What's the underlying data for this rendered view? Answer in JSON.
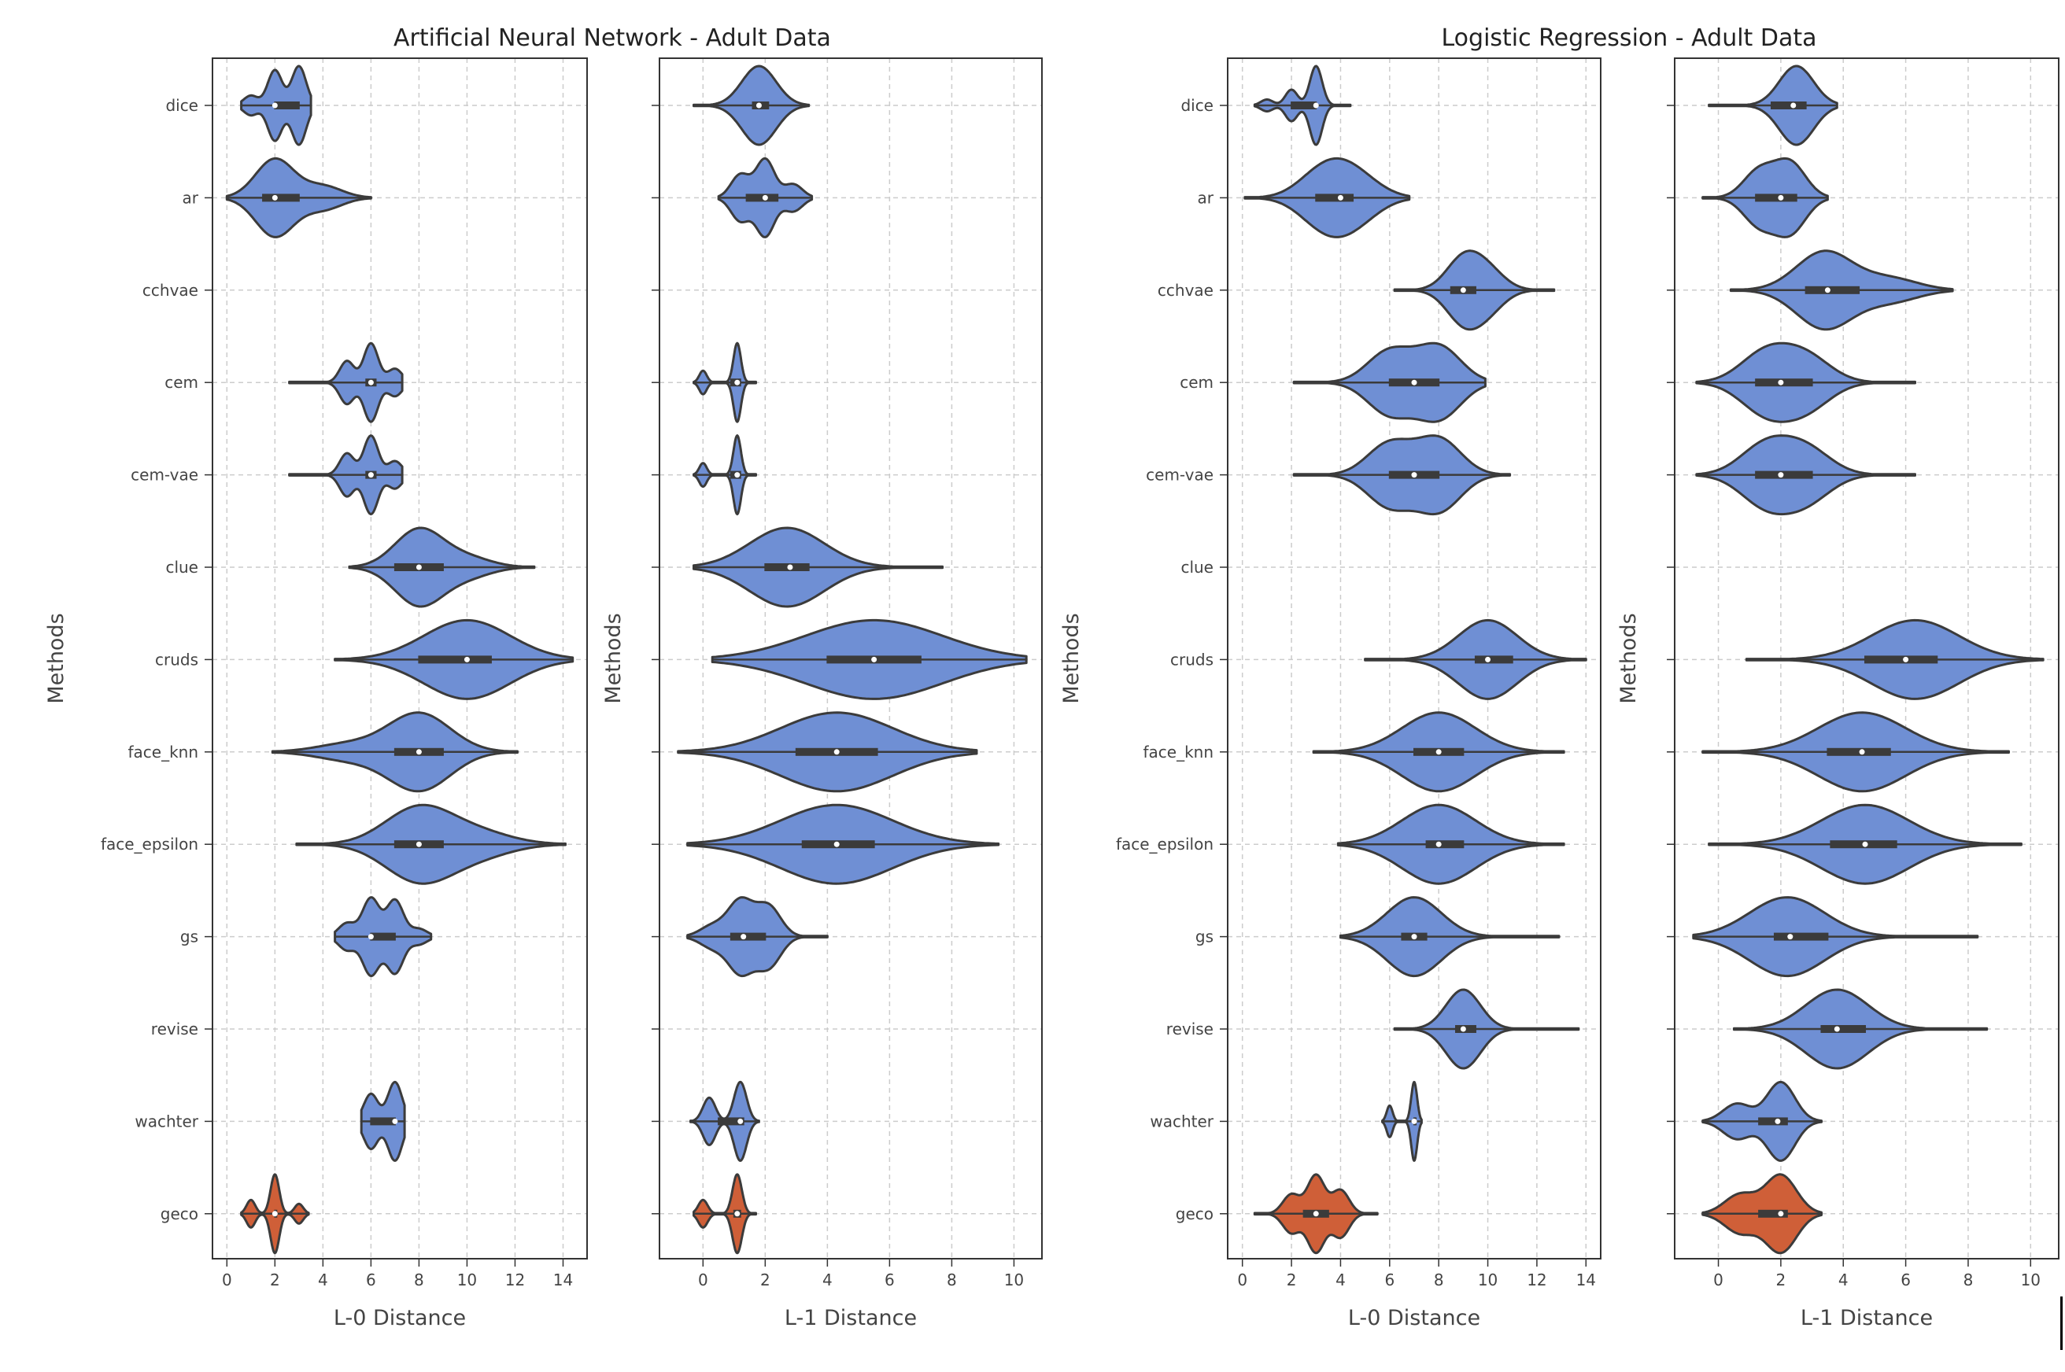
{
  "colors": {
    "primary": "#6f8fd4",
    "highlight": "#cf5f38",
    "outline": "#3b3b3b"
  },
  "figure_titles": {
    "left": "Artificial Neural Network - Adult Data",
    "right": "Logistic Regression - Adult Data"
  },
  "chart_data": [
    {
      "type": "violin",
      "group": "Artificial Neural Network - Adult Data",
      "xlabel": "L-0 Distance",
      "ylabel": "Methods",
      "xlim": [
        -0.6,
        15.0
      ],
      "xticks": [
        0,
        2,
        4,
        6,
        8,
        10,
        12,
        14
      ],
      "categories": [
        "dice",
        "ar",
        "cchvae",
        "cem",
        "cem-vae",
        "clue",
        "cruds",
        "face_knn",
        "face_epsilon",
        "gs",
        "revise",
        "wachter",
        "geco"
      ],
      "highlight": "geco",
      "series": [
        {
          "name": "dice",
          "min": 0.6,
          "max": 3.5,
          "q1": 2,
          "median": 2,
          "q3": 3,
          "modes": [
            [
              1,
              0.25
            ],
            [
              2,
              0.9
            ],
            [
              3,
              1
            ]
          ],
          "bw": 0.3
        },
        {
          "name": "ar",
          "min": 0,
          "max": 6,
          "q1": 1.5,
          "median": 2,
          "q3": 3,
          "modes": [
            [
              2,
              1
            ],
            [
              4,
              0.3
            ]
          ],
          "bw": 0.8
        },
        {
          "name": "cchvae",
          "empty": true
        },
        {
          "name": "cem",
          "min": 2.6,
          "max": 7.3,
          "q1": 5.8,
          "median": 6,
          "q3": 6.2,
          "modes": [
            [
              5,
              0.55
            ],
            [
              6,
              1
            ],
            [
              7,
              0.35
            ]
          ],
          "bw": 0.3
        },
        {
          "name": "cem-vae",
          "min": 2.6,
          "max": 7.3,
          "q1": 5.8,
          "median": 6,
          "q3": 6.2,
          "modes": [
            [
              5,
              0.55
            ],
            [
              6,
              1
            ],
            [
              7,
              0.35
            ]
          ],
          "bw": 0.3
        },
        {
          "name": "clue",
          "min": 5.1,
          "max": 12.8,
          "q1": 7,
          "median": 8,
          "q3": 9,
          "modes": [
            [
              8,
              1
            ],
            [
              10,
              0.25
            ]
          ],
          "bw": 1
        },
        {
          "name": "cruds",
          "min": 4.5,
          "max": 14.4,
          "q1": 8,
          "median": 10,
          "q3": 11,
          "modes": [
            [
              10,
              1
            ]
          ],
          "bw": 1.8
        },
        {
          "name": "face_knn",
          "min": 1.9,
          "max": 12.1,
          "q1": 7,
          "median": 8,
          "q3": 9,
          "modes": [
            [
              8,
              1
            ],
            [
              5,
              0.2
            ]
          ],
          "bw": 1.3
        },
        {
          "name": "face_epsilon",
          "min": 2.9,
          "max": 14.1,
          "q1": 7,
          "median": 8,
          "q3": 9,
          "modes": [
            [
              8,
              1
            ],
            [
              10.5,
              0.3
            ]
          ],
          "bw": 1.4
        },
        {
          "name": "gs",
          "min": 4.5,
          "max": 8.5,
          "q1": 6,
          "median": 6,
          "q3": 7,
          "modes": [
            [
              5,
              0.35
            ],
            [
              6,
              1
            ],
            [
              7,
              0.95
            ],
            [
              8,
              0.2
            ]
          ],
          "bw": 0.35
        },
        {
          "name": "revise",
          "empty": true
        },
        {
          "name": "wachter",
          "min": 5.6,
          "max": 7.4,
          "q1": 6,
          "median": 7,
          "q3": 7,
          "modes": [
            [
              6,
              0.7
            ],
            [
              7,
              1
            ]
          ],
          "bw": 0.3
        },
        {
          "name": "geco",
          "min": 0.6,
          "max": 3.4,
          "q1": 2,
          "median": 2,
          "q3": 2,
          "modes": [
            [
              1,
              0.35
            ],
            [
              2,
              1
            ],
            [
              3,
              0.25
            ]
          ],
          "bw": 0.18
        }
      ]
    },
    {
      "type": "violin",
      "group": "Artificial Neural Network - Adult Data",
      "xlabel": "L-1 Distance",
      "ylabel": "Methods",
      "xlim": [
        -1.4,
        10.9
      ],
      "xticks": [
        0,
        2,
        4,
        6,
        8,
        10
      ],
      "categories": [
        "dice",
        "ar",
        "cchvae",
        "cem",
        "cem-vae",
        "clue",
        "cruds",
        "face_knn",
        "face_epsilon",
        "gs",
        "revise",
        "wachter",
        "geco"
      ],
      "highlight": "geco",
      "series": [
        {
          "name": "dice",
          "min": -0.3,
          "max": 3.4,
          "q1": 1.6,
          "median": 1.8,
          "q3": 2.1,
          "modes": [
            [
              1.8,
              1
            ]
          ],
          "bw": 0.55
        },
        {
          "name": "ar",
          "min": 0.5,
          "max": 3.5,
          "q1": 1.4,
          "median": 2,
          "q3": 2.4,
          "modes": [
            [
              1.2,
              0.6
            ],
            [
              2,
              1
            ],
            [
              2.9,
              0.35
            ]
          ],
          "bw": 0.3
        },
        {
          "name": "cchvae",
          "empty": true
        },
        {
          "name": "cem",
          "min": -0.3,
          "max": 1.7,
          "q1": 0.9,
          "median": 1.1,
          "q3": 1.2,
          "modes": [
            [
              0,
              0.3
            ],
            [
              1.1,
              1
            ]
          ],
          "bw": 0.12
        },
        {
          "name": "cem-vae",
          "min": -0.3,
          "max": 1.7,
          "q1": 0.9,
          "median": 1.1,
          "q3": 1.2,
          "modes": [
            [
              0,
              0.3
            ],
            [
              1.1,
              1
            ]
          ],
          "bw": 0.12
        },
        {
          "name": "clue",
          "min": -0.3,
          "max": 7.7,
          "q1": 2,
          "median": 2.8,
          "q3": 3.4,
          "modes": [
            [
              2.7,
              1
            ]
          ],
          "bw": 1.2
        },
        {
          "name": "cruds",
          "min": 0.3,
          "max": 10.4,
          "q1": 4,
          "median": 5.5,
          "q3": 7,
          "modes": [
            [
              5.5,
              1
            ]
          ],
          "bw": 2.2
        },
        {
          "name": "face_knn",
          "min": -0.8,
          "max": 8.8,
          "q1": 3,
          "median": 4.3,
          "q3": 5.6,
          "modes": [
            [
              4.3,
              1
            ]
          ],
          "bw": 1.8
        },
        {
          "name": "face_epsilon",
          "min": -0.5,
          "max": 9.5,
          "q1": 3.2,
          "median": 4.3,
          "q3": 5.5,
          "modes": [
            [
              4.3,
              1
            ]
          ],
          "bw": 1.8
        },
        {
          "name": "gs",
          "min": -0.5,
          "max": 4,
          "q1": 0.9,
          "median": 1.3,
          "q3": 2,
          "modes": [
            [
              0.3,
              0.3
            ],
            [
              1.2,
              1
            ],
            [
              2.1,
              0.85
            ]
          ],
          "bw": 0.4
        },
        {
          "name": "revise",
          "empty": true
        },
        {
          "name": "wachter",
          "min": -0.4,
          "max": 1.8,
          "q1": 0.5,
          "median": 1.2,
          "q3": 1.3,
          "modes": [
            [
              0.2,
              0.6
            ],
            [
              1.2,
              1
            ]
          ],
          "bw": 0.2
        },
        {
          "name": "geco",
          "min": -0.3,
          "max": 1.7,
          "q1": 1,
          "median": 1.1,
          "q3": 1.2,
          "modes": [
            [
              0,
              0.35
            ],
            [
              1.1,
              1
            ]
          ],
          "bw": 0.15
        }
      ]
    },
    {
      "type": "violin",
      "group": "Logistic Regression - Adult Data",
      "xlabel": "L-0 Distance",
      "ylabel": "Methods",
      "xlim": [
        -0.6,
        14.6
      ],
      "xticks": [
        0,
        2,
        4,
        6,
        8,
        10,
        12,
        14
      ],
      "categories": [
        "dice",
        "ar",
        "cchvae",
        "cem",
        "cem-vae",
        "clue",
        "cruds",
        "face_knn",
        "face_epsilon",
        "gs",
        "revise",
        "wachter",
        "geco"
      ],
      "highlight": "geco",
      "series": [
        {
          "name": "dice",
          "min": 0.5,
          "max": 4.4,
          "q1": 2,
          "median": 3,
          "q3": 3,
          "modes": [
            [
              1,
              0.15
            ],
            [
              2,
              0.4
            ],
            [
              3,
              1
            ]
          ],
          "bw": 0.25
        },
        {
          "name": "ar",
          "min": 0.1,
          "max": 6.8,
          "q1": 3,
          "median": 4,
          "q3": 4.5,
          "modes": [
            [
              3,
              0.6
            ],
            [
              4,
              0.8
            ],
            [
              5,
              0.4
            ]
          ],
          "bw": 0.9
        },
        {
          "name": "cchvae",
          "min": 6.2,
          "max": 12.7,
          "q1": 8.5,
          "median": 9,
          "q3": 9.5,
          "modes": [
            [
              9,
              1
            ],
            [
              10,
              0.6
            ]
          ],
          "bw": 0.7
        },
        {
          "name": "cem",
          "min": 2.1,
          "max": 9.9,
          "q1": 6,
          "median": 7,
          "q3": 8,
          "modes": [
            [
              6,
              0.7
            ],
            [
              8,
              0.8
            ]
          ],
          "bw": 0.9
        },
        {
          "name": "cem-vae",
          "min": 2.1,
          "max": 10.9,
          "q1": 6,
          "median": 7,
          "q3": 8,
          "modes": [
            [
              6,
              0.7
            ],
            [
              8,
              0.8
            ]
          ],
          "bw": 0.9
        },
        {
          "name": "clue",
          "empty": true
        },
        {
          "name": "cruds",
          "min": 5,
          "max": 14,
          "q1": 9.5,
          "median": 10,
          "q3": 11,
          "modes": [
            [
              10,
              1
            ]
          ],
          "bw": 1.2
        },
        {
          "name": "face_knn",
          "min": 2.9,
          "max": 13.1,
          "q1": 7,
          "median": 8,
          "q3": 9,
          "modes": [
            [
              8,
              1
            ]
          ],
          "bw": 1.5
        },
        {
          "name": "face_epsilon",
          "min": 3.9,
          "max": 13.1,
          "q1": 7.5,
          "median": 8,
          "q3": 9,
          "modes": [
            [
              8,
              1
            ]
          ],
          "bw": 1.5
        },
        {
          "name": "gs",
          "min": 4,
          "max": 12.9,
          "q1": 6.5,
          "median": 7,
          "q3": 7.5,
          "modes": [
            [
              7,
              1
            ]
          ],
          "bw": 1.1
        },
        {
          "name": "revise",
          "min": 6.2,
          "max": 13.7,
          "q1": 8.7,
          "median": 9,
          "q3": 9.5,
          "modes": [
            [
              9,
              1
            ]
          ],
          "bw": 0.7
        },
        {
          "name": "wachter",
          "min": 5.7,
          "max": 7.3,
          "q1": 7,
          "median": 7,
          "q3": 7,
          "modes": [
            [
              6,
              0.4
            ],
            [
              7,
              1
            ]
          ],
          "bw": 0.12
        },
        {
          "name": "geco",
          "min": 0.5,
          "max": 5.5,
          "q1": 2.5,
          "median": 3,
          "q3": 3.5,
          "modes": [
            [
              2,
              0.45
            ],
            [
              3,
              0.9
            ],
            [
              4,
              0.55
            ]
          ],
          "bw": 0.35
        }
      ]
    },
    {
      "type": "violin",
      "group": "Logistic Regression - Adult Data",
      "xlabel": "L-1 Distance",
      "ylabel": "Methods",
      "xlim": [
        -1.4,
        10.9
      ],
      "xticks": [
        0,
        2,
        4,
        6,
        8,
        10
      ],
      "categories": [
        "dice",
        "ar",
        "cchvae",
        "cem",
        "cem-vae",
        "clue",
        "cruds",
        "face_knn",
        "face_epsilon",
        "gs",
        "revise",
        "wachter",
        "geco"
      ],
      "highlight": "geco",
      "series": [
        {
          "name": "dice",
          "min": -0.3,
          "max": 3.8,
          "q1": 1.7,
          "median": 2.4,
          "q3": 2.8,
          "modes": [
            [
              2.5,
              1
            ]
          ],
          "bw": 0.55
        },
        {
          "name": "ar",
          "min": -0.5,
          "max": 3.5,
          "q1": 1.2,
          "median": 2,
          "q3": 2.5,
          "modes": [
            [
              1.3,
              0.7
            ],
            [
              2.3,
              0.9
            ]
          ],
          "bw": 0.5
        },
        {
          "name": "cchvae",
          "min": 0.4,
          "max": 7.5,
          "q1": 2.8,
          "median": 3.5,
          "q3": 4.5,
          "modes": [
            [
              3.4,
              1
            ],
            [
              5.5,
              0.3
            ]
          ],
          "bw": 0.9
        },
        {
          "name": "cem",
          "min": -0.7,
          "max": 6.3,
          "q1": 1.2,
          "median": 2,
          "q3": 3,
          "modes": [
            [
              1.5,
              0.8
            ],
            [
              2.8,
              0.7
            ]
          ],
          "bw": 0.8
        },
        {
          "name": "cem-vae",
          "min": -0.7,
          "max": 6.3,
          "q1": 1.2,
          "median": 2,
          "q3": 3,
          "modes": [
            [
              1.5,
              0.8
            ],
            [
              2.8,
              0.7
            ]
          ],
          "bw": 0.8
        },
        {
          "name": "clue",
          "empty": true
        },
        {
          "name": "cruds",
          "min": 0.9,
          "max": 10.4,
          "q1": 4.7,
          "median": 6,
          "q3": 7,
          "modes": [
            [
              6.3,
              1
            ]
          ],
          "bw": 1.4
        },
        {
          "name": "face_knn",
          "min": -0.5,
          "max": 9.3,
          "q1": 3.5,
          "median": 4.6,
          "q3": 5.5,
          "modes": [
            [
              4.6,
              1
            ]
          ],
          "bw": 1.4
        },
        {
          "name": "face_epsilon",
          "min": -0.3,
          "max": 9.7,
          "q1": 3.6,
          "median": 4.7,
          "q3": 5.7,
          "modes": [
            [
              4.7,
              1
            ]
          ],
          "bw": 1.4
        },
        {
          "name": "gs",
          "min": -0.8,
          "max": 8.3,
          "q1": 1.8,
          "median": 2.3,
          "q3": 3.5,
          "modes": [
            [
              2.2,
              1
            ]
          ],
          "bw": 1.2
        },
        {
          "name": "revise",
          "min": 0.5,
          "max": 8.6,
          "q1": 3.3,
          "median": 3.8,
          "q3": 4.7,
          "modes": [
            [
              3.8,
              1
            ]
          ],
          "bw": 1.0
        },
        {
          "name": "wachter",
          "min": -0.5,
          "max": 3.3,
          "q1": 1.3,
          "median": 1.9,
          "q3": 2.2,
          "modes": [
            [
              0.6,
              0.45
            ],
            [
              2,
              1
            ]
          ],
          "bw": 0.45
        },
        {
          "name": "geco",
          "min": -0.5,
          "max": 3.3,
          "q1": 1.3,
          "median": 2,
          "q3": 2.2,
          "modes": [
            [
              0.7,
              0.5
            ],
            [
              2,
              1
            ]
          ],
          "bw": 0.5
        }
      ]
    }
  ]
}
